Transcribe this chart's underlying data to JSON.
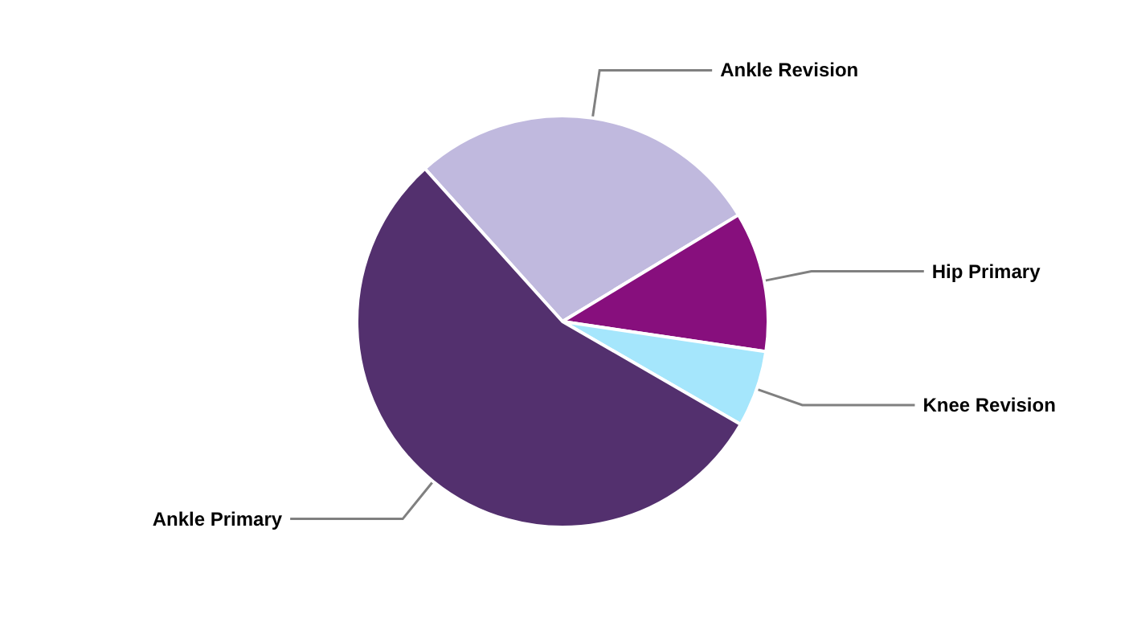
{
  "chart_data": {
    "type": "pie",
    "categories": [
      "Ankle Revision",
      "Hip Primary",
      "Knee Revision",
      "Ankle Primary"
    ],
    "values": [
      28,
      11,
      6,
      55
    ],
    "colors": [
      "#c0b9de",
      "#870f7d",
      "#a5e6fc",
      "#53306e"
    ],
    "legend": false
  }
}
